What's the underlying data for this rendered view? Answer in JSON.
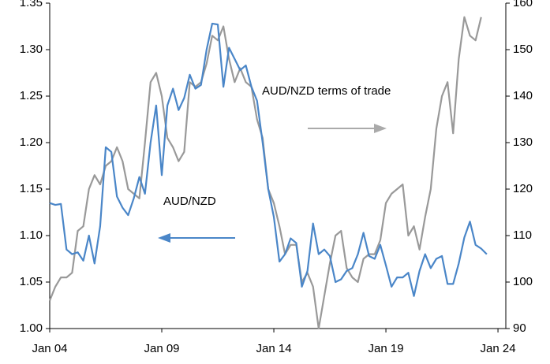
{
  "chart_data": {
    "type": "line",
    "xlim": [
      2004,
      2024.35
    ],
    "xticks": [
      {
        "value": 2004,
        "label": "Jan 04"
      },
      {
        "value": 2009,
        "label": "Jan 09"
      },
      {
        "value": 2014,
        "label": "Jan 14"
      },
      {
        "value": 2019,
        "label": "Jan 19"
      },
      {
        "value": 2024,
        "label": "Jan 24"
      }
    ],
    "ylim": [
      1.0,
      1.35
    ],
    "yticks": [
      {
        "value": 1.0,
        "label": "1.00"
      },
      {
        "value": 1.05,
        "label": "1.05"
      },
      {
        "value": 1.1,
        "label": "1.10"
      },
      {
        "value": 1.15,
        "label": "1.15"
      },
      {
        "value": 1.2,
        "label": "1.20"
      },
      {
        "value": 1.25,
        "label": "1.25"
      },
      {
        "value": 1.3,
        "label": "1.30"
      },
      {
        "value": 1.35,
        "label": "1.35"
      }
    ],
    "y2lim": [
      90,
      160
    ],
    "y2ticks": [
      90,
      100,
      110,
      120,
      130,
      140,
      150,
      160
    ],
    "grid": false,
    "series": [
      {
        "name": "AUD/NZD",
        "color": "#4a86c8",
        "x": [
          2004,
          2004.25,
          2004.5,
          2004.75,
          2005,
          2005.25,
          2005.5,
          2005.75,
          2006,
          2006.25,
          2006.5,
          2006.75,
          2007,
          2007.25,
          2007.5,
          2007.75,
          2008,
          2008.25,
          2008.5,
          2008.75,
          2009,
          2009.25,
          2009.5,
          2009.75,
          2010,
          2010.25,
          2010.5,
          2010.75,
          2011,
          2011.25,
          2011.5,
          2011.75,
          2012,
          2012.25,
          2012.5,
          2012.75,
          2013,
          2013.25,
          2013.5,
          2013.75,
          2014,
          2014.25,
          2014.5,
          2014.75,
          2015,
          2015.25,
          2015.5,
          2015.75,
          2016,
          2016.25,
          2016.5,
          2016.75,
          2017,
          2017.25,
          2017.5,
          2017.75,
          2018,
          2018.25,
          2018.5,
          2018.75,
          2019,
          2019.25,
          2019.5,
          2019.75,
          2020,
          2020.25,
          2020.5,
          2020.75,
          2021,
          2021.25,
          2021.5,
          2021.75,
          2022,
          2022.25,
          2022.5,
          2022.75,
          2023,
          2023.25,
          2023.5
        ],
        "values": [
          1.135,
          1.133,
          1.134,
          1.085,
          1.08,
          1.082,
          1.073,
          1.1,
          1.07,
          1.11,
          1.195,
          1.19,
          1.142,
          1.13,
          1.122,
          1.14,
          1.163,
          1.145,
          1.2,
          1.24,
          1.165,
          1.24,
          1.258,
          1.235,
          1.248,
          1.273,
          1.258,
          1.262,
          1.3,
          1.328,
          1.327,
          1.26,
          1.302,
          1.29,
          1.278,
          1.283,
          1.26,
          1.245,
          1.2,
          1.15,
          1.12,
          1.072,
          1.08,
          1.097,
          1.092,
          1.045,
          1.062,
          1.113,
          1.08,
          1.085,
          1.078,
          1.05,
          1.053,
          1.062,
          1.065,
          1.08,
          1.103,
          1.078,
          1.075,
          1.09,
          1.068,
          1.045,
          1.055,
          1.055,
          1.06,
          1.035,
          1.062,
          1.08,
          1.065,
          1.075,
          1.078,
          1.048,
          1.048,
          1.07,
          1.098,
          1.115,
          1.09,
          1.086,
          1.08
        ]
      },
      {
        "name": "AUD/NZD terms of trade",
        "color": "#999999",
        "axis": "y2",
        "x": [
          2004,
          2004.25,
          2004.5,
          2004.75,
          2005,
          2005.25,
          2005.5,
          2005.75,
          2006,
          2006.25,
          2006.5,
          2006.75,
          2007,
          2007.25,
          2007.5,
          2007.75,
          2008,
          2008.25,
          2008.5,
          2008.75,
          2009,
          2009.25,
          2009.5,
          2009.75,
          2010,
          2010.25,
          2010.5,
          2010.75,
          2011,
          2011.25,
          2011.5,
          2011.75,
          2012,
          2012.25,
          2012.5,
          2012.75,
          2013,
          2013.25,
          2013.5,
          2013.75,
          2014,
          2014.25,
          2014.5,
          2014.75,
          2015,
          2015.25,
          2015.5,
          2015.75,
          2016,
          2016.25,
          2016.5,
          2016.75,
          2017,
          2017.25,
          2017.5,
          2017.75,
          2018,
          2018.25,
          2018.5,
          2018.75,
          2019,
          2019.25,
          2019.5,
          2019.75,
          2020,
          2020.25,
          2020.5,
          2020.75,
          2021,
          2021.25,
          2021.5,
          2021.75,
          2022,
          2022.25,
          2022.5,
          2022.75,
          2023,
          2023.25
        ],
        "values": [
          96,
          99,
          101,
          101,
          102,
          111,
          112,
          120,
          123,
          121,
          125,
          126,
          129,
          126,
          120,
          119,
          118,
          130,
          143,
          145,
          140,
          131,
          129,
          126,
          128,
          143,
          142,
          143,
          147,
          153,
          152,
          155,
          148,
          143,
          146,
          143,
          142,
          135,
          131,
          120,
          117,
          112,
          106,
          108,
          108,
          100,
          102,
          99,
          90,
          97,
          104,
          110,
          111,
          103,
          101,
          100,
          105,
          106,
          106,
          109,
          117,
          119,
          120,
          121,
          110,
          112,
          107,
          114,
          120,
          133,
          140,
          143,
          132,
          148,
          157,
          153,
          152,
          157
        ]
      }
    ]
  }
}
